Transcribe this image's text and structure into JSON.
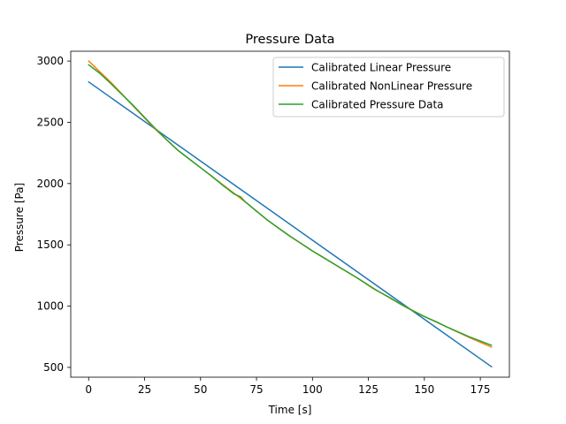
{
  "chart_data": {
    "type": "line",
    "title": "Pressure Data",
    "xlabel": "Time [s]",
    "ylabel": "Pressure [Pa]",
    "xlim": [
      -8,
      188
    ],
    "ylim": [
      420,
      3080
    ],
    "xticks": [
      0,
      25,
      50,
      75,
      100,
      125,
      150,
      175
    ],
    "yticks": [
      500,
      1000,
      1500,
      2000,
      2500,
      3000
    ],
    "grid": false,
    "legend_position": "top-right",
    "series": [
      {
        "name": "Calibrated Linear Pressure",
        "color": "#1f77b4",
        "x": [
          0,
          180
        ],
        "y": [
          2830,
          505
        ]
      },
      {
        "name": "Calibrated NonLinear Pressure",
        "color": "#ff7f0e",
        "x": [
          0,
          10,
          20,
          30,
          40,
          50,
          60,
          70,
          80,
          90,
          100,
          110,
          120,
          130,
          140,
          150,
          160,
          170,
          180
        ],
        "y": [
          3000,
          2825,
          2630,
          2440,
          2270,
          2130,
          1990,
          1850,
          1700,
          1570,
          1450,
          1340,
          1230,
          1115,
          1010,
          915,
          830,
          745,
          665
        ]
      },
      {
        "name": "Calibrated Pressure Data",
        "color": "#2ca02c",
        "x": [
          0,
          5,
          10,
          15,
          20,
          25,
          30,
          35,
          40,
          45,
          50,
          55,
          60,
          65,
          68,
          70,
          75,
          80,
          85,
          90,
          95,
          100,
          105,
          110,
          115,
          120,
          125,
          127,
          130,
          135,
          140,
          145,
          150,
          155,
          160,
          165,
          170,
          175,
          180
        ],
        "y": [
          2970,
          2900,
          2815,
          2725,
          2635,
          2540,
          2445,
          2355,
          2270,
          2200,
          2130,
          2060,
          1985,
          1915,
          1890,
          1850,
          1775,
          1700,
          1635,
          1570,
          1510,
          1450,
          1395,
          1340,
          1285,
          1230,
          1170,
          1145,
          1115,
          1065,
          1010,
          960,
          915,
          875,
          830,
          790,
          750,
          715,
          680
        ]
      }
    ]
  }
}
